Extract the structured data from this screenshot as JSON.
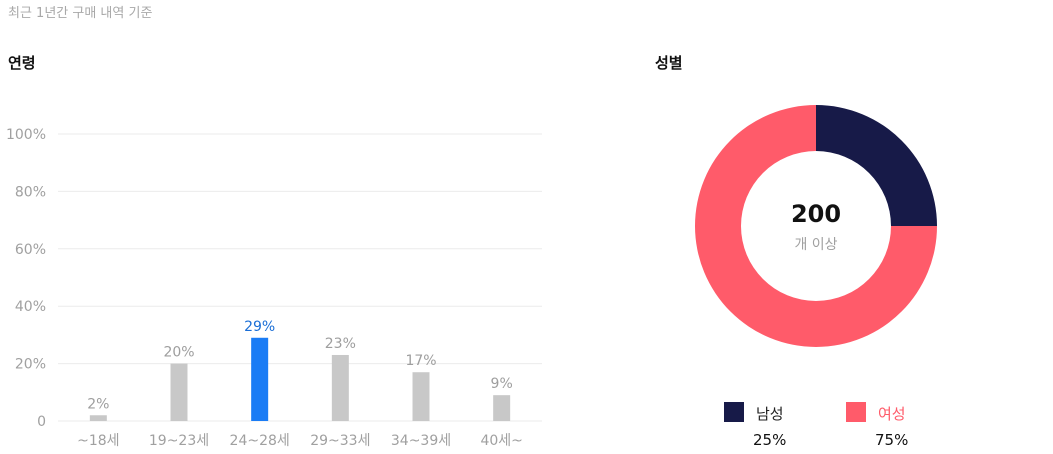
{
  "note": "최근 1년간 구매 내역 기준",
  "age_section": {
    "title": "연령"
  },
  "gender_section": {
    "title": "성별",
    "center_count": "200",
    "center_label": "개 이상",
    "legend": [
      {
        "label": "남성",
        "value": "25%"
      },
      {
        "label": "여성",
        "value": "75%"
      }
    ]
  },
  "colors": {
    "bar_default": "#c8c8c8",
    "bar_highlight": "#1a7cf5",
    "label_default": "#9e9e9e",
    "label_highlight": "#1a6ed6",
    "male": "#171a48",
    "female": "#ff5b6a",
    "grid": "#ebebeb",
    "axis_text": "#a0a0a0"
  },
  "chart_data": [
    {
      "type": "bar",
      "categories": [
        "~18세",
        "19~23세",
        "24~28세",
        "29~33세",
        "34~39세",
        "40세~"
      ],
      "values": [
        2,
        20,
        29,
        23,
        17,
        9
      ],
      "value_labels": [
        "2%",
        "20%",
        "29%",
        "23%",
        "17%",
        "9%"
      ],
      "highlight_index": 2,
      "yticks": [
        0,
        20,
        40,
        60,
        80,
        100
      ],
      "ytick_labels": [
        "0",
        "20%",
        "40%",
        "60%",
        "80%",
        "100%"
      ],
      "ylim": [
        0,
        100
      ],
      "grid": true
    },
    {
      "type": "pie",
      "labels": [
        "남성",
        "여성"
      ],
      "values": [
        25,
        75
      ]
    }
  ]
}
